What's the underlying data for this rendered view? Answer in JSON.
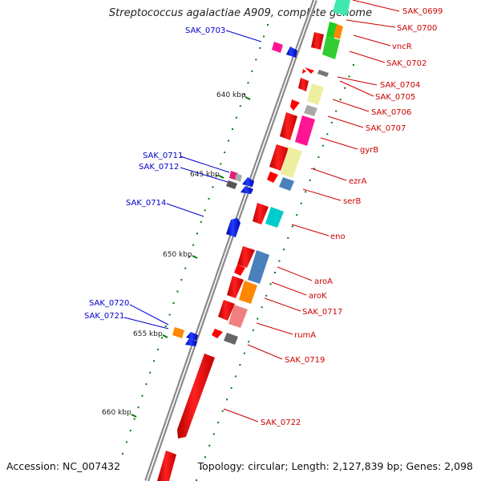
{
  "title": "Streptococcus agalactiae A909, complete genome",
  "footer": {
    "accession": "Accession: NC_007432",
    "topology": "Topology: circular; Length: 2,127,839 bp; Genes: 2,098"
  },
  "ticks": [
    "640 kbp",
    "645 kbp",
    "650 kbp",
    "655 kbp",
    "660 kbp"
  ],
  "gene_labels_right": [
    "SAK_0699",
    "SAK_0700",
    "vncR",
    "SAK_0702",
    "SAK_0704",
    "SAK_0705",
    "SAK_0706",
    "SAK_0707",
    "gyrB",
    "ezrA",
    "serB",
    "eno",
    "aroA",
    "aroK",
    "SAK_0717",
    "rumA",
    "SAK_0719",
    "SAK_0722"
  ],
  "gene_labels_left": [
    "SAK_0703",
    "SAK_0711",
    "SAK_0712",
    "SAK_0714",
    "SAK_0720",
    "SAK_0721"
  ],
  "colors": {
    "backbone": "#8a8a8a",
    "label_right": "#cc0000",
    "label_left": "#0000cc",
    "forward_gene": "#ff0000",
    "reverse_gene": "#0000ff",
    "tick": "#007a00"
  }
}
